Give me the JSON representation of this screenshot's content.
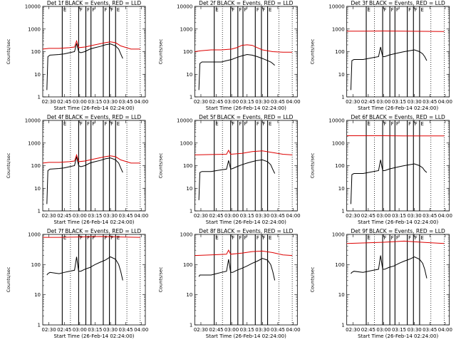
{
  "colors": {
    "events": "#000000",
    "lld": "#dd0000",
    "axis": "#000000"
  },
  "chart_data": [
    {
      "type": "line",
      "title": "Det 1f BLACK = Events, RED = LLD",
      "xlabel": "Start Time (26-Feb-14 02:24:00)",
      "ylabel": "Counts/sec",
      "xticks": [
        "02:30",
        "02:45",
        "03:00",
        "03:15",
        "03:30",
        "03:45",
        "04:00"
      ],
      "yticks": [
        "1",
        "10",
        "100",
        "1000",
        "10000"
      ],
      "xlim": [
        "02:24",
        "04:04"
      ],
      "ylim": [
        1,
        10000
      ],
      "yscale": "log",
      "flag_labels": [
        "E",
        "F",
        "F",
        "F",
        "F",
        "F",
        "E"
      ],
      "series": [
        {
          "name": "Events",
          "x": [
            "02:28",
            "02:29",
            "02:31",
            "02:40",
            "02:45",
            "02:50",
            "02:55",
            "02:57",
            "02:59",
            "03:01",
            "03:05",
            "03:10",
            "03:15",
            "03:20",
            "03:25",
            "03:30",
            "03:35",
            "03:38",
            "03:40",
            "03:42"
          ],
          "values": [
            2,
            60,
            70,
            75,
            80,
            90,
            100,
            230,
            100,
            90,
            100,
            130,
            150,
            170,
            200,
            220,
            180,
            130,
            80,
            50
          ]
        },
        {
          "name": "LLD",
          "x": [
            "02:24",
            "02:30",
            "02:40",
            "02:50",
            "02:55",
            "02:57",
            "02:59",
            "03:05",
            "03:15",
            "03:25",
            "03:30",
            "03:35",
            "03:40",
            "03:50",
            "03:59"
          ],
          "values": [
            130,
            140,
            140,
            150,
            160,
            300,
            150,
            160,
            200,
            250,
            270,
            250,
            180,
            130,
            130
          ]
        }
      ]
    },
    {
      "type": "line",
      "title": "Det 2f BLACK = Events, RED = LLD",
      "xlabel": "Start Time (26-Feb-14 02:24:00)",
      "ylabel": "Counts/sec",
      "xticks": [
        "02:30",
        "02:45",
        "03:00",
        "03:15",
        "03:30",
        "03:45",
        "04:00"
      ],
      "yticks": [
        "1",
        "10",
        "100",
        "1000",
        "10000"
      ],
      "xlim": [
        "02:24",
        "04:04"
      ],
      "ylim": [
        1,
        10000
      ],
      "yscale": "log",
      "flag_labels": [
        "E",
        "F",
        "F",
        "F",
        "F",
        "F",
        "E"
      ],
      "series": [
        {
          "name": "Events",
          "x": [
            "02:28",
            "02:29",
            "02:31",
            "02:40",
            "02:45",
            "02:50",
            "02:55",
            "03:00",
            "03:05",
            "03:10",
            "03:15",
            "03:20",
            "03:25",
            "03:30",
            "03:35",
            "03:38",
            "03:40",
            "03:42"
          ],
          "values": [
            2,
            30,
            35,
            35,
            35,
            35,
            40,
            45,
            55,
            65,
            75,
            70,
            60,
            50,
            40,
            35,
            30,
            25
          ]
        },
        {
          "name": "LLD",
          "x": [
            "02:24",
            "02:30",
            "02:40",
            "02:50",
            "03:00",
            "03:05",
            "03:10",
            "03:15",
            "03:20",
            "03:25",
            "03:30",
            "03:40",
            "03:50",
            "03:59"
          ],
          "values": [
            100,
            110,
            120,
            120,
            130,
            150,
            190,
            200,
            190,
            150,
            120,
            100,
            95,
            95
          ]
        }
      ]
    },
    {
      "type": "line",
      "title": "Det 3f BLACK = Events, RED = LLD",
      "xlabel": "Start Time (26-Feb-14 02:24:00)",
      "ylabel": "Counts/sec",
      "xticks": [
        "02:30",
        "02:45",
        "03:00",
        "03:15",
        "03:30",
        "03:45",
        "04:00"
      ],
      "yticks": [
        "1",
        "10",
        "100",
        "1000",
        "10000"
      ],
      "xlim": [
        "02:24",
        "04:04"
      ],
      "ylim": [
        1,
        10000
      ],
      "yscale": "log",
      "flag_labels": [
        "E",
        "F",
        "F",
        "F",
        "F",
        "F",
        "E"
      ],
      "series": [
        {
          "name": "Events",
          "x": [
            "02:28",
            "02:29",
            "02:31",
            "02:40",
            "02:45",
            "02:50",
            "02:55",
            "02:57",
            "02:59",
            "03:01",
            "03:05",
            "03:10",
            "03:15",
            "03:20",
            "03:25",
            "03:30",
            "03:35",
            "03:38",
            "03:40",
            "03:42"
          ],
          "values": [
            2,
            40,
            45,
            45,
            50,
            55,
            60,
            160,
            60,
            60,
            70,
            80,
            90,
            100,
            110,
            120,
            100,
            80,
            60,
            40
          ]
        },
        {
          "name": "LLD",
          "x": [
            "02:24",
            "02:40",
            "03:00",
            "03:20",
            "03:40",
            "03:59"
          ],
          "values": [
            800,
            800,
            820,
            800,
            790,
            780
          ]
        }
      ]
    },
    {
      "type": "line",
      "title": "Det 4f BLACK = Events, RED = LLD",
      "xlabel": "Start Time (26-Feb-14 02:24:00)",
      "ylabel": "Counts/sec",
      "xticks": [
        "02:30",
        "02:45",
        "03:00",
        "03:15",
        "03:30",
        "03:45",
        "04:00"
      ],
      "yticks": [
        "1",
        "10",
        "100",
        "1000",
        "10000"
      ],
      "xlim": [
        "02:24",
        "04:04"
      ],
      "ylim": [
        1,
        10000
      ],
      "yscale": "log",
      "flag_labels": [
        "E",
        "F",
        "F",
        "F",
        "F",
        "F",
        "E"
      ],
      "series": [
        {
          "name": "Events",
          "x": [
            "02:28",
            "02:29",
            "02:31",
            "02:40",
            "02:45",
            "02:50",
            "02:55",
            "02:57",
            "02:59",
            "03:01",
            "03:05",
            "03:10",
            "03:15",
            "03:20",
            "03:25",
            "03:30",
            "03:35",
            "03:38",
            "03:40",
            "03:42"
          ],
          "values": [
            2,
            60,
            70,
            75,
            80,
            90,
            100,
            250,
            100,
            90,
            100,
            130,
            150,
            170,
            200,
            220,
            180,
            130,
            80,
            50
          ]
        },
        {
          "name": "LLD",
          "x": [
            "02:24",
            "02:30",
            "02:40",
            "02:50",
            "02:55",
            "02:57",
            "02:59",
            "03:05",
            "03:15",
            "03:25",
            "03:30",
            "03:35",
            "03:40",
            "03:50",
            "03:59"
          ],
          "values": [
            130,
            140,
            140,
            150,
            160,
            300,
            150,
            160,
            200,
            250,
            270,
            250,
            180,
            130,
            130
          ]
        }
      ]
    },
    {
      "type": "line",
      "title": "Det 5f BLACK = Events, RED = LLD",
      "xlabel": "Start Time (26-Feb-14 02:24:00)",
      "ylabel": "Counts/sec",
      "xticks": [
        "02:30",
        "02:45",
        "03:00",
        "03:15",
        "03:30",
        "03:45",
        "04:00"
      ],
      "yticks": [
        "1",
        "10",
        "100",
        "1000",
        "10000"
      ],
      "xlim": [
        "02:24",
        "04:04"
      ],
      "ylim": [
        1,
        10000
      ],
      "yscale": "log",
      "flag_labels": [
        "E",
        "F",
        "F",
        "F",
        "F",
        "F",
        "E"
      ],
      "series": [
        {
          "name": "Events",
          "x": [
            "02:28",
            "02:29",
            "02:31",
            "02:40",
            "02:45",
            "02:50",
            "02:55",
            "02:57",
            "02:59",
            "03:01",
            "03:05",
            "03:10",
            "03:15",
            "03:20",
            "03:25",
            "03:30",
            "03:35",
            "03:38",
            "03:40",
            "03:42"
          ],
          "values": [
            3,
            50,
            55,
            55,
            60,
            65,
            70,
            170,
            70,
            75,
            90,
            110,
            130,
            150,
            170,
            180,
            150,
            110,
            70,
            45
          ]
        },
        {
          "name": "LLD",
          "x": [
            "02:24",
            "02:40",
            "02:55",
            "02:57",
            "02:59",
            "03:10",
            "03:20",
            "03:30",
            "03:40",
            "03:50",
            "03:59"
          ],
          "values": [
            300,
            310,
            320,
            480,
            320,
            350,
            420,
            450,
            380,
            320,
            300
          ]
        }
      ]
    },
    {
      "type": "line",
      "title": "Det 6f BLACK = Events, RED = LLD",
      "xlabel": "Start Time (26-Feb-14 02:24:00)",
      "ylabel": "Counts/sec",
      "xticks": [
        "02:30",
        "02:45",
        "03:00",
        "03:15",
        "03:30",
        "03:45",
        "04:00"
      ],
      "yticks": [
        "1",
        "10",
        "100",
        "1000",
        "10000"
      ],
      "xlim": [
        "02:24",
        "04:04"
      ],
      "ylim": [
        1,
        10000
      ],
      "yscale": "log",
      "flag_labels": [
        "E",
        "F",
        "F",
        "F",
        "F",
        "F",
        "E"
      ],
      "series": [
        {
          "name": "Events",
          "x": [
            "02:28",
            "02:29",
            "02:31",
            "02:40",
            "02:45",
            "02:50",
            "02:55",
            "02:57",
            "02:59",
            "03:01",
            "03:05",
            "03:10",
            "03:15",
            "03:20",
            "03:25",
            "03:30",
            "03:35",
            "03:38",
            "03:40",
            "03:42"
          ],
          "values": [
            2,
            40,
            45,
            45,
            50,
            55,
            60,
            180,
            60,
            60,
            70,
            80,
            90,
            100,
            110,
            120,
            100,
            80,
            60,
            50
          ]
        },
        {
          "name": "LLD",
          "x": [
            "02:24",
            "02:40",
            "03:00",
            "03:20",
            "03:40",
            "03:59"
          ],
          "values": [
            2100,
            2100,
            2100,
            2080,
            2080,
            2080
          ]
        }
      ]
    },
    {
      "type": "line",
      "title": "Det 7f BLACK = Events, RED = LLD",
      "xlabel": "Start Time (26-Feb-14 02:24:00)",
      "ylabel": "Counts/sec",
      "xticks": [
        "02:30",
        "02:45",
        "03:00",
        "03:15",
        "03:30",
        "03:45",
        "04:00"
      ],
      "yticks": [
        "1",
        "10",
        "100",
        "1000"
      ],
      "xlim": [
        "02:24",
        "04:04"
      ],
      "ylim": [
        1,
        1000
      ],
      "yscale": "log",
      "flag_labels": [
        "E",
        "F",
        "F",
        "F",
        "F",
        "F",
        "E"
      ],
      "series": [
        {
          "name": "Events",
          "x": [
            "02:28",
            "02:29",
            "02:31",
            "02:40",
            "02:45",
            "02:50",
            "02:55",
            "02:57",
            "02:59",
            "03:01",
            "03:05",
            "03:10",
            "03:15",
            "03:20",
            "03:25",
            "03:30",
            "03:35",
            "03:38",
            "03:40",
            "03:42"
          ],
          "values": [
            45,
            50,
            55,
            50,
            55,
            60,
            65,
            180,
            60,
            60,
            70,
            80,
            100,
            120,
            140,
            180,
            150,
            100,
            60,
            30
          ]
        },
        {
          "name": "LLD",
          "x": [
            "02:24",
            "02:40",
            "03:00",
            "03:20",
            "03:40",
            "03:59"
          ],
          "values": [
            800,
            800,
            820,
            850,
            820,
            800
          ]
        }
      ]
    },
    {
      "type": "line",
      "title": "Det 8f BLACK = Events, RED = LLD",
      "xlabel": "Start Time (26-Feb-14 02:24:00)",
      "ylabel": "Counts/sec",
      "xticks": [
        "02:30",
        "02:45",
        "03:00",
        "03:15",
        "03:30",
        "03:45",
        "04:00"
      ],
      "yticks": [
        "1",
        "10",
        "100",
        "1000"
      ],
      "xlim": [
        "02:24",
        "04:04"
      ],
      "ylim": [
        1,
        1000
      ],
      "yscale": "log",
      "flag_labels": [
        "E",
        "F",
        "F",
        "F",
        "F",
        "F",
        "E"
      ],
      "series": [
        {
          "name": "Events",
          "x": [
            "02:28",
            "02:29",
            "02:31",
            "02:40",
            "02:45",
            "02:50",
            "02:55",
            "02:57",
            "02:59",
            "03:01",
            "03:05",
            "03:10",
            "03:15",
            "03:20",
            "03:25",
            "03:30",
            "03:35",
            "03:38",
            "03:40",
            "03:42"
          ],
          "values": [
            40,
            45,
            45,
            45,
            50,
            55,
            60,
            150,
            55,
            55,
            65,
            75,
            90,
            110,
            130,
            160,
            140,
            100,
            60,
            30
          ]
        },
        {
          "name": "LLD",
          "x": [
            "02:24",
            "02:40",
            "02:55",
            "02:57",
            "02:59",
            "03:10",
            "03:20",
            "03:30",
            "03:40",
            "03:50",
            "03:59"
          ],
          "values": [
            200,
            210,
            220,
            300,
            220,
            240,
            270,
            280,
            250,
            210,
            200
          ]
        }
      ]
    },
    {
      "type": "line",
      "title": "Det 9f BLACK = Events, RED = LLD",
      "xlabel": "Start Time (26-Feb-14 02:24:00)",
      "ylabel": "Counts/sec",
      "xticks": [
        "02:30",
        "02:45",
        "03:00",
        "03:15",
        "03:30",
        "03:45",
        "04:00"
      ],
      "yticks": [
        "1",
        "10",
        "100",
        "1000"
      ],
      "xlim": [
        "02:24",
        "04:04"
      ],
      "ylim": [
        1,
        1000
      ],
      "yscale": "log",
      "flag_labels": [
        "E",
        "F",
        "F",
        "F",
        "F",
        "F",
        "E"
      ],
      "series": [
        {
          "name": "Events",
          "x": [
            "02:28",
            "02:29",
            "02:31",
            "02:40",
            "02:45",
            "02:50",
            "02:55",
            "02:57",
            "02:59",
            "03:01",
            "03:05",
            "03:10",
            "03:15",
            "03:20",
            "03:25",
            "03:30",
            "03:35",
            "03:38",
            "03:40",
            "03:42"
          ],
          "values": [
            50,
            55,
            60,
            55,
            60,
            65,
            70,
            200,
            70,
            70,
            80,
            90,
            110,
            130,
            150,
            180,
            150,
            110,
            70,
            35
          ]
        },
        {
          "name": "LLD",
          "x": [
            "02:24",
            "02:40",
            "03:00",
            "03:20",
            "03:40",
            "03:59"
          ],
          "values": [
            500,
            520,
            550,
            600,
            540,
            500
          ]
        }
      ]
    }
  ]
}
